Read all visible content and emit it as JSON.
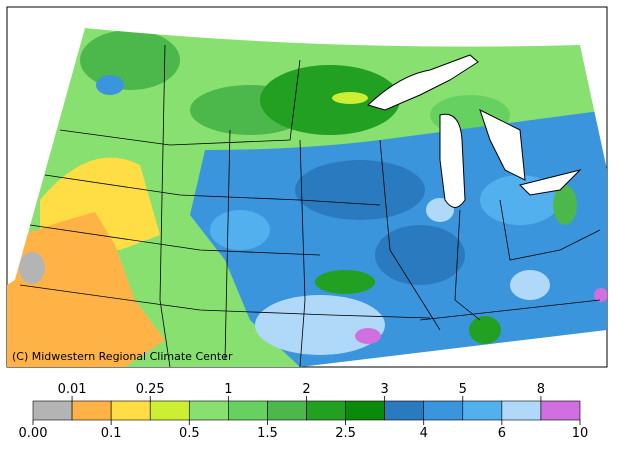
{
  "credit": "(C) Midwestern Regional Climate Center",
  "legend": {
    "labels": [
      "0.00",
      "0.01",
      "0.1",
      "0.25",
      "0.5",
      "1",
      "1.5",
      "2",
      "2.5",
      "3",
      "4",
      "5",
      "6",
      "8",
      "10"
    ],
    "colors": [
      "#b4b4b4",
      "#ffb347",
      "#ffdd44",
      "#ccee33",
      "#88e070",
      "#66d060",
      "#4cb84c",
      "#22a022",
      "#0a8a0a",
      "#2a7ac0",
      "#3a95dd",
      "#52b0ee",
      "#b0d8f8",
      "#d070e0"
    ]
  }
}
